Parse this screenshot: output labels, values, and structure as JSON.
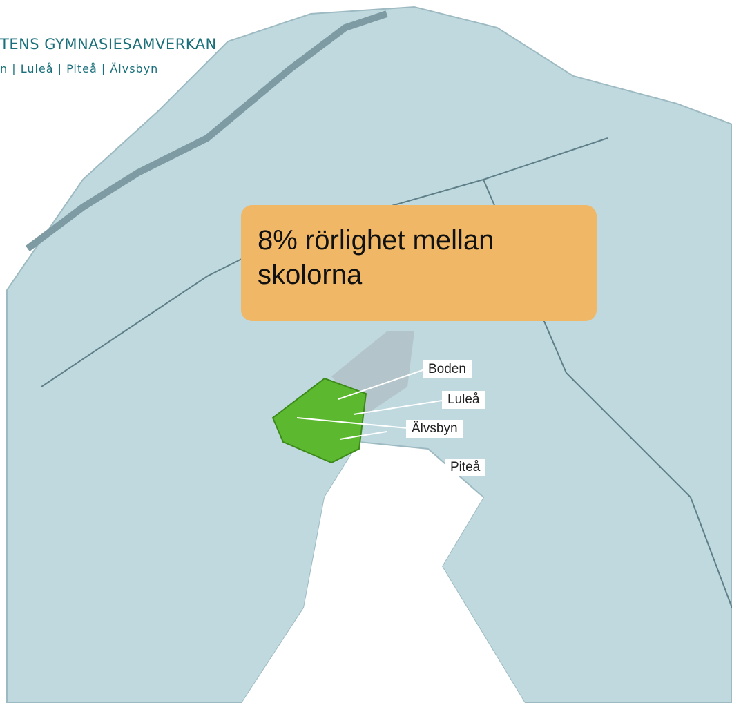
{
  "logo": {
    "title": "TENS GYMNASIESAMVERKAN",
    "subtitle": "n | Luleå | Piteå | Älvsbyn"
  },
  "callout": "8% rörlighet mellan skolorna",
  "places": [
    "Boden",
    "Luleå",
    "Älvsbyn",
    "Piteå"
  ]
}
